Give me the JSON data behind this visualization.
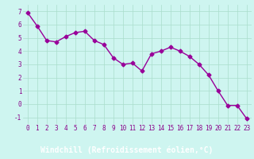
{
  "x": [
    0,
    1,
    2,
    3,
    4,
    5,
    6,
    7,
    8,
    9,
    10,
    11,
    12,
    13,
    14,
    15,
    16,
    17,
    18,
    19,
    20,
    21,
    22,
    23
  ],
  "y": [
    6.9,
    5.9,
    4.8,
    4.7,
    5.1,
    5.4,
    5.5,
    4.8,
    4.5,
    3.5,
    3.0,
    3.1,
    2.5,
    3.8,
    4.0,
    4.3,
    4.0,
    3.6,
    3.0,
    2.2,
    1.0,
    -0.1,
    -0.1,
    -1.1
  ],
  "line_color": "#990099",
  "marker": "D",
  "marker_size": 2.5,
  "bg_color": "#cef5f0",
  "grid_color": "#aaddcc",
  "xlabel": "Windchill (Refroidissement éolien,°C)",
  "xlabel_color": "#ffffff",
  "xlabel_bg": "#880088",
  "tick_color": "#880088",
  "ylim": [
    -1.5,
    7.5
  ],
  "xlim": [
    -0.5,
    23.5
  ],
  "yticks": [
    -1,
    0,
    1,
    2,
    3,
    4,
    5,
    6,
    7
  ],
  "xticks": [
    0,
    1,
    2,
    3,
    4,
    5,
    6,
    7,
    8,
    9,
    10,
    11,
    12,
    13,
    14,
    15,
    16,
    17,
    18,
    19,
    20,
    21,
    22,
    23
  ],
  "tick_label_size": 5.5,
  "xlabel_fontsize": 7.0,
  "linewidth": 1.0
}
